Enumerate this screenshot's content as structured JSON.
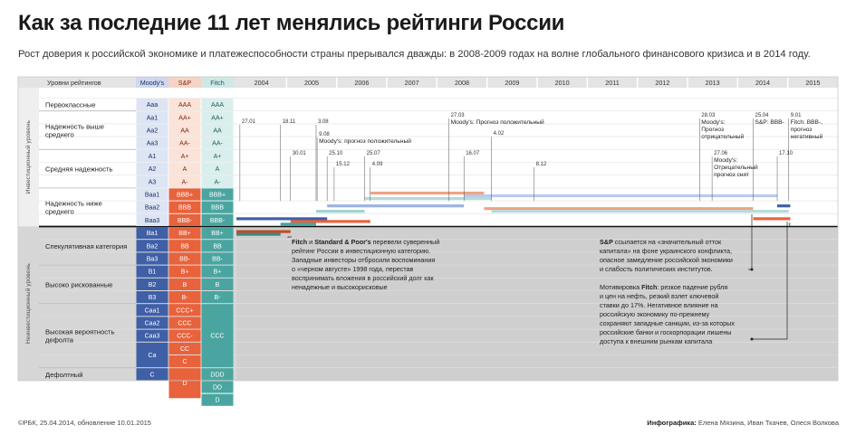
{
  "title": "Как за последние 11 лет менялись рейтинги России",
  "subtitle": "Рост доверия к российской экономике и платежеспособности страны прерывался дважды: в 2008-2009 годах на волне глобального финансового кризиса и в 2014 году.",
  "headers": {
    "levels": "Уровни рейтингов",
    "moodys": "Moody's",
    "sp": "S&P",
    "fitch": "Fitch"
  },
  "years": [
    "2004",
    "2005",
    "2006",
    "2007",
    "2008",
    "2009",
    "2010",
    "2011",
    "2012",
    "2013",
    "2014",
    "2015"
  ],
  "side_labels": {
    "investment": "Инвестиционный уровень",
    "noninvestment": "Неинвестиционный уровень"
  },
  "categories": [
    {
      "label": [
        "Первоклассные"
      ]
    },
    {
      "label": [
        "Надежность выше",
        "среднего"
      ]
    },
    {
      "label": [
        "Средняя надежность"
      ]
    },
    {
      "label": [
        "Надежность ниже",
        "среднего"
      ]
    },
    {
      "label": [
        "Спекулятивная категория"
      ]
    },
    {
      "label": [
        "Высоко рискованные"
      ]
    },
    {
      "label": [
        "Высокая вероятность",
        "дефолта"
      ]
    },
    {
      "label": [
        "Дефолтный"
      ]
    }
  ],
  "scale": {
    "moodys": [
      "Aaa",
      "Aa1",
      "Aa2",
      "Aa3",
      "A1",
      "A2",
      "A3",
      "Baa1",
      "Baa2",
      "Baa3",
      "Ba1",
      "Ba2",
      "Ba3",
      "B1",
      "B2",
      "B3",
      "Caa1",
      "Caa2",
      "Caa3",
      "Ca",
      "C"
    ],
    "sp": [
      "AAA",
      "AA+",
      "AA",
      "AA-",
      "A+",
      "A",
      "A-",
      "BBB+",
      "BBB",
      "BBB-",
      "BB+",
      "BB",
      "BB-",
      "B+",
      "B",
      "B-",
      "CCC+",
      "CCC",
      "CCC-",
      "CC",
      "C",
      "D"
    ],
    "fitch": [
      "AAA",
      "AA+",
      "AA",
      "AA-",
      "A+",
      "A",
      "A-",
      "BBB+",
      "BBB",
      "BBB-",
      "BB+",
      "BB",
      "BB-",
      "B+",
      "B",
      "B-",
      "CCC",
      "DDD",
      "DD",
      "D"
    ]
  },
  "events": [
    {
      "date": "27.01"
    },
    {
      "date": "18.11"
    },
    {
      "date": "30.01"
    },
    {
      "date": "3.08"
    },
    {
      "date": "9.08",
      "text": [
        "Moody's: прогноз положительный"
      ]
    },
    {
      "date": "25.10"
    },
    {
      "date": "15.12"
    },
    {
      "date": "25.07"
    },
    {
      "date": "4.09"
    },
    {
      "date": "27.03",
      "text": [
        "Moody's: Прогноз положительный"
      ]
    },
    {
      "date": "4.02"
    },
    {
      "date": "16.07"
    },
    {
      "date": "8.12"
    },
    {
      "date": "28.03",
      "text": [
        "Moody's:",
        "Прогноз",
        "отрицательный"
      ]
    },
    {
      "date": "27.06",
      "text": [
        "Moody's:",
        "Отрицательный",
        "прогноз снят"
      ]
    },
    {
      "date": "25.04",
      "text": [
        "S&P: BBB-"
      ]
    },
    {
      "date": "17.10"
    },
    {
      "date": "9.01",
      "text": [
        "Fitch: BBB-,",
        "прогноз",
        "негативный"
      ]
    }
  ],
  "notes": {
    "left": {
      "bold1": "Fitch",
      "mid1": " и ",
      "bold2": "Standard & Poor's",
      "rest1": " перевели суверенный",
      "lines": [
        "рейтинг России в инвестиционную категорию.",
        "Западные инвесторы отбросили воспоминания",
        "о «черном августе» 1998 года, перестав",
        "воспринимать вложения в российский долг как",
        "ненадежные и высокорисковые"
      ]
    },
    "right1": {
      "bold": "S&P",
      "rest": " ссылается на «значительный отток",
      "lines": [
        "капитала» на фоне украинского конфликта,",
        "опасное замедление российской экономики",
        "и слабость политических институтов."
      ]
    },
    "right2": {
      "pre": "Мотивировка ",
      "bold": "Fitch",
      "rest": ": резкое падение рубля",
      "lines": [
        "и цен на нефть, резкий взлет ключевой",
        "ставки до 17%. Негативное влияние на",
        "российскую экономику по-прежнему",
        "сохраняют западные санкции, из-за которых",
        "российские банки и госкорпорации лишены",
        "доступа к внешним рынкам капитала"
      ]
    }
  },
  "footer": {
    "left": "©РБК, 25.04.2014, обновление 10.01.2015",
    "right_bold": "Инфографика:",
    "right": " Елена Мязина, Иван Ткачев, Олеся Волкова"
  },
  "colors": {
    "moodys": "#3f5fa6",
    "sp": "#e8623c",
    "fitch": "#4aa5a0",
    "gray": "#c9c9c9"
  },
  "chart_data": {
    "type": "line",
    "title": "Как за последние 11 лет менялись рейтинги России",
    "x": [
      "2004",
      "2005",
      "2006",
      "2007",
      "2008",
      "2009",
      "2010",
      "2011",
      "2012",
      "2013",
      "2014",
      "2015"
    ],
    "series": [
      {
        "name": "Moody's",
        "points": [
          [
            "2004-01-01",
            "Baa3"
          ],
          [
            "2005-10-25",
            "Baa2"
          ],
          [
            "2008-07-16",
            "Baa1"
          ],
          [
            "2009-12-08",
            "Baa1"
          ],
          [
            "2014-10-17",
            "Baa2"
          ],
          [
            "2015-01-10",
            "Baa2"
          ]
        ]
      },
      {
        "name": "S&P",
        "points": [
          [
            "2004-01-01",
            "BB+"
          ],
          [
            "2005-01-31",
            "BBB-"
          ],
          [
            "2006-09-04",
            "BBB"
          ],
          [
            "2008-12-08",
            "BBB"
          ],
          [
            "2009-02-04",
            "BBB"
          ],
          [
            "2014-04-25",
            "BBB-"
          ],
          [
            "2015-01-10",
            "BBB-"
          ]
        ]
      },
      {
        "name": "Fitch",
        "points": [
          [
            "2004-01-01",
            "BB+"
          ],
          [
            "2004-11-18",
            "BBB-"
          ],
          [
            "2005-08-03",
            "BBB"
          ],
          [
            "2006-07-25",
            "BBB+"
          ],
          [
            "2009-02-04",
            "BBB"
          ],
          [
            "2015-01-09",
            "BBB-"
          ]
        ]
      }
    ]
  }
}
